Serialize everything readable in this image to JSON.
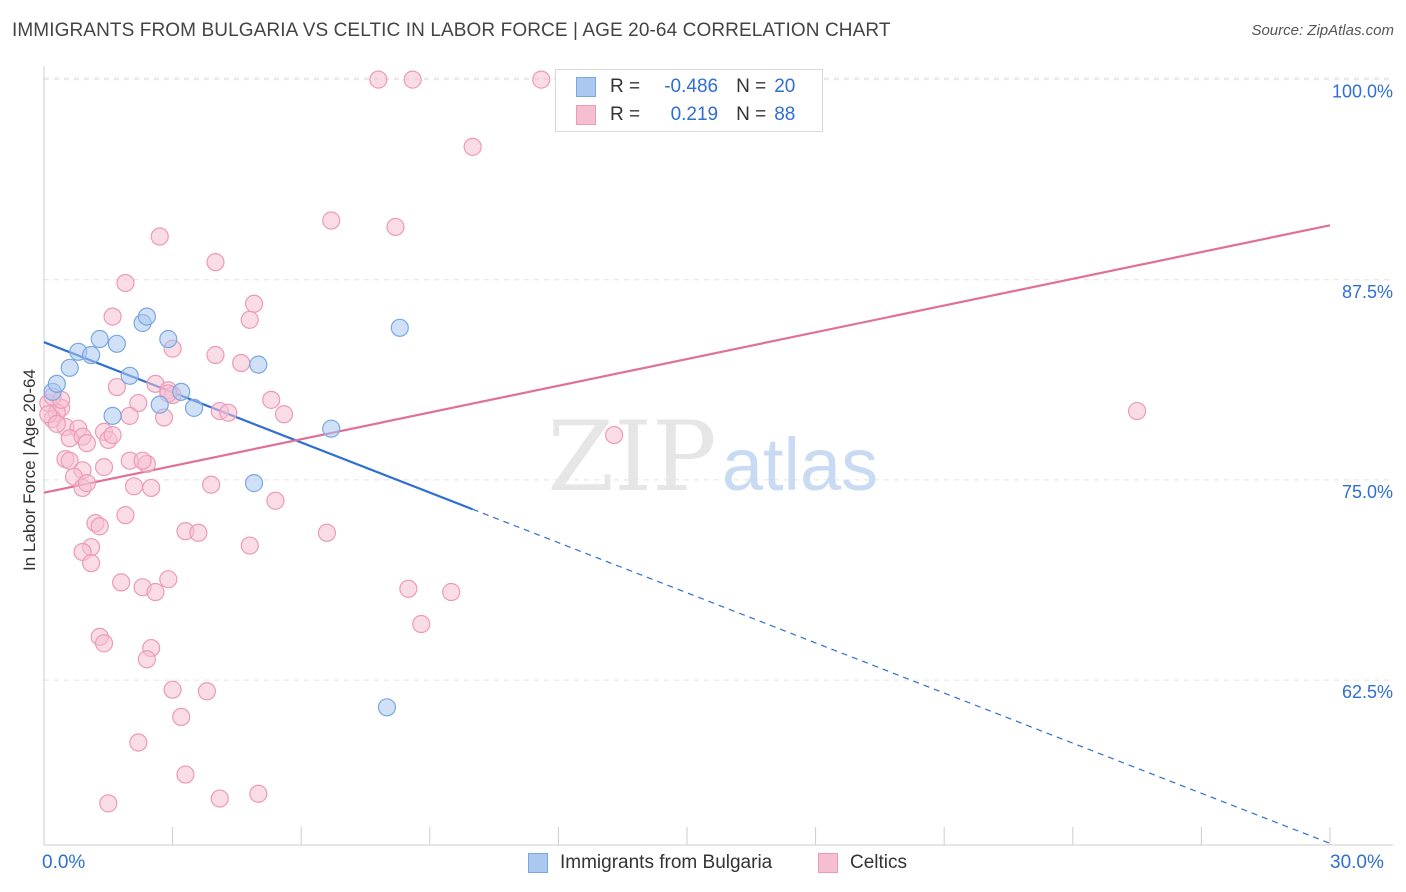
{
  "title": "IMMIGRANTS FROM BULGARIA VS CELTIC IN LABOR FORCE | AGE 20-64 CORRELATION CHART",
  "source": "Source: ZipAtlas.com",
  "watermark": {
    "zip": "ZIP",
    "atlas": "atlas"
  },
  "colors": {
    "blue": "#2f6fd1",
    "blue_fill": "#aac8f0",
    "pink": "#e0709a",
    "pink_fill": "#f6bfd1",
    "grid": "#e2e2e2"
  },
  "legend": {
    "r_label": "R =",
    "n_label": "N =",
    "rows": [
      {
        "name": "Immigrants from Bulgaria",
        "r": "-0.486",
        "n": "20"
      },
      {
        "name": "Celtics",
        "r": "0.219",
        "n": "88"
      }
    ]
  },
  "chart_data": {
    "type": "scatter",
    "xlabel": "",
    "ylabel": "In Labor Force | Age 20-64",
    "xlim": [
      0,
      30
    ],
    "ylim": [
      52.2,
      100.6
    ],
    "x_tick_labels": [
      "0.0%",
      "30.0%"
    ],
    "y_ticks": [
      62.5,
      75.0,
      87.5,
      100.0
    ],
    "y_tick_labels": [
      "62.5%",
      "75.0%",
      "87.5%",
      "100.0%"
    ],
    "series": [
      {
        "name": "Immigrants from Bulgaria",
        "color": "#2f6fd1",
        "points": [
          [
            0.2,
            80.5
          ],
          [
            0.3,
            81.0
          ],
          [
            0.6,
            82.0
          ],
          [
            0.8,
            83.0
          ],
          [
            1.1,
            82.8
          ],
          [
            1.3,
            83.8
          ],
          [
            1.7,
            83.5
          ],
          [
            2.0,
            81.5
          ],
          [
            2.3,
            84.8
          ],
          [
            2.4,
            85.2
          ],
          [
            2.9,
            83.8
          ],
          [
            1.6,
            79.0
          ],
          [
            2.7,
            79.7
          ],
          [
            3.2,
            80.5
          ],
          [
            3.5,
            79.5
          ],
          [
            5.0,
            82.2
          ],
          [
            4.9,
            74.8
          ],
          [
            6.7,
            78.2
          ],
          [
            8.3,
            84.5
          ],
          [
            8.0,
            60.8
          ]
        ],
        "trend": {
          "x0": 0,
          "y0": 83.6,
          "x_solid_end": 10.0,
          "x1": 30.0,
          "y1": 52.3
        }
      },
      {
        "name": "Celtics",
        "color": "#e0709a",
        "points": [
          [
            7.8,
            100.0
          ],
          [
            8.6,
            100.0
          ],
          [
            11.6,
            100.0
          ],
          [
            10.0,
            95.8
          ],
          [
            6.7,
            91.2
          ],
          [
            8.2,
            90.8
          ],
          [
            2.7,
            90.2
          ],
          [
            4.0,
            88.6
          ],
          [
            1.9,
            87.3
          ],
          [
            4.9,
            86.0
          ],
          [
            1.6,
            85.2
          ],
          [
            4.8,
            85.0
          ],
          [
            3.0,
            83.2
          ],
          [
            4.0,
            82.8
          ],
          [
            4.6,
            82.3
          ],
          [
            2.6,
            81.0
          ],
          [
            1.7,
            80.8
          ],
          [
            2.9,
            80.6
          ],
          [
            5.3,
            80.0
          ],
          [
            2.2,
            79.8
          ],
          [
            4.1,
            79.3
          ],
          [
            4.3,
            79.2
          ],
          [
            5.6,
            79.1
          ],
          [
            2.0,
            79.0
          ],
          [
            1.4,
            78.0
          ],
          [
            0.4,
            79.5
          ],
          [
            0.1,
            79.8
          ],
          [
            0.3,
            79.2
          ],
          [
            0.2,
            78.8
          ],
          [
            0.5,
            78.3
          ],
          [
            0.8,
            78.2
          ],
          [
            0.6,
            77.6
          ],
          [
            0.9,
            77.7
          ],
          [
            1.0,
            77.3
          ],
          [
            1.5,
            77.5
          ],
          [
            1.6,
            77.8
          ],
          [
            0.5,
            76.3
          ],
          [
            0.6,
            76.2
          ],
          [
            0.9,
            75.6
          ],
          [
            1.4,
            75.8
          ],
          [
            2.0,
            76.2
          ],
          [
            2.4,
            76.0
          ],
          [
            2.3,
            76.2
          ],
          [
            0.7,
            75.2
          ],
          [
            0.9,
            74.5
          ],
          [
            2.1,
            74.6
          ],
          [
            2.5,
            74.5
          ],
          [
            3.9,
            74.7
          ],
          [
            5.4,
            73.7
          ],
          [
            1.9,
            72.8
          ],
          [
            1.2,
            72.3
          ],
          [
            1.3,
            72.1
          ],
          [
            3.3,
            71.8
          ],
          [
            3.6,
            71.7
          ],
          [
            4.8,
            70.9
          ],
          [
            6.6,
            71.7
          ],
          [
            1.1,
            70.8
          ],
          [
            0.9,
            70.5
          ],
          [
            1.1,
            69.8
          ],
          [
            1.8,
            68.6
          ],
          [
            2.3,
            68.3
          ],
          [
            2.6,
            68.0
          ],
          [
            2.9,
            68.8
          ],
          [
            8.5,
            68.2
          ],
          [
            9.5,
            68.0
          ],
          [
            8.8,
            66.0
          ],
          [
            1.3,
            65.2
          ],
          [
            1.4,
            64.8
          ],
          [
            2.5,
            64.5
          ],
          [
            2.4,
            63.8
          ],
          [
            3.0,
            61.9
          ],
          [
            3.8,
            61.8
          ],
          [
            3.2,
            60.2
          ],
          [
            2.2,
            58.6
          ],
          [
            3.3,
            56.6
          ],
          [
            1.5,
            54.8
          ],
          [
            4.1,
            55.1
          ],
          [
            5.0,
            55.4
          ],
          [
            13.3,
            77.8
          ],
          [
            25.5,
            79.3
          ],
          [
            0.2,
            80.2
          ],
          [
            0.4,
            80.0
          ],
          [
            0.1,
            79.1
          ],
          [
            0.3,
            78.5
          ],
          [
            2.8,
            78.9
          ],
          [
            3.0,
            80.3
          ],
          [
            1.0,
            74.8
          ],
          [
            2.9,
            80.4
          ]
        ],
        "trend": {
          "x0": 0,
          "y0": 74.2,
          "x1": 30.0,
          "y1": 90.9
        }
      }
    ]
  }
}
